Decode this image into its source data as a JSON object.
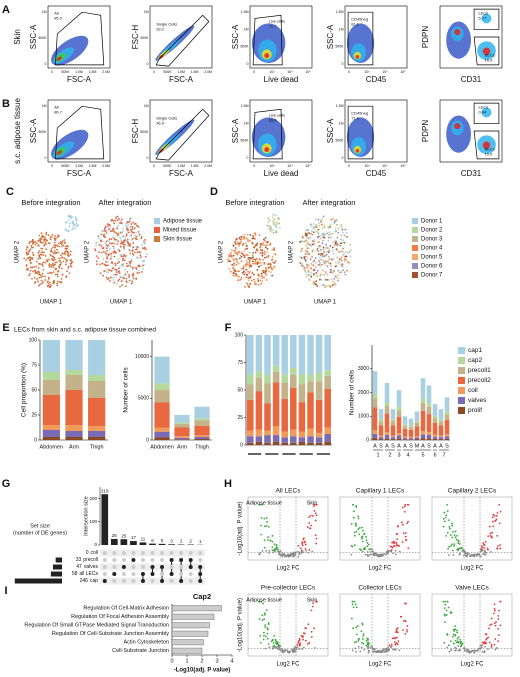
{
  "flow": [
    {
      "label": "A",
      "tissue": "Skin",
      "plots": [
        {
          "x_label": "FSC-A",
          "y_label": "SSC-A",
          "gates": [
            {
              "name": "All",
              "value": "85.0"
            }
          ],
          "xticks": [
            "0",
            "500K",
            "1.0M",
            "1.5M",
            "2.0M"
          ],
          "yticks": [
            "0",
            "500K",
            "1M"
          ]
        },
        {
          "x_label": "FSC-A",
          "y_label": "FSC-H",
          "gates": [
            {
              "name": "Single Cells",
              "value": "93.2"
            }
          ],
          "xticks": [
            "0",
            "500K",
            "1.0M",
            "1.5M",
            "2.0M"
          ],
          "yticks": [
            "0",
            "500K",
            "1M"
          ]
        },
        {
          "x_label": "Live dead",
          "y_label": "SSC-A",
          "gates": [
            {
              "name": "Live cells",
              "value": "71.7"
            }
          ],
          "xticks": [
            "0",
            "10³",
            "10⁴",
            "10⁵"
          ],
          "yticks": [
            "0",
            "500K",
            "1M",
            "1.5M"
          ]
        },
        {
          "x_label": "CD45",
          "y_label": "SSC-A",
          "gates": [
            {
              "name": "CD45neg",
              "value": "81.1"
            }
          ],
          "xticks": [
            "0",
            "10³",
            "10⁴",
            "10⁵"
          ],
          "yticks": [
            "0",
            "500K",
            "1M",
            "1.5M"
          ]
        },
        {
          "x_label": "CD31",
          "y_label": "PDPN",
          "gates": [
            {
              "name": "LECs",
              "value": "5.77"
            },
            {
              "name": "BECs",
              "value": "16.9"
            }
          ],
          "xticks": [],
          "yticks": []
        }
      ]
    },
    {
      "label": "B",
      "tissue": "s.c. adipose tissue",
      "plots": [
        {
          "x_label": "FSC-A",
          "y_label": "SSC-A",
          "gates": [
            {
              "name": "All",
              "value": "86.7"
            }
          ],
          "xticks": [
            "0",
            "500K",
            "1.0M",
            "1.5M",
            "2.0M"
          ],
          "yticks": [
            "0",
            "500K",
            "1M"
          ]
        },
        {
          "x_label": "FSC-A",
          "y_label": "FSC-H",
          "gates": [
            {
              "name": "Single Cells",
              "value": "96.9"
            }
          ],
          "xticks": [
            "0",
            "500K",
            "1.0M",
            "1.5M",
            "2.0M"
          ],
          "yticks": [
            "0",
            "500K",
            "1M"
          ]
        },
        {
          "x_label": "Live dead",
          "y_label": "SSC-A",
          "gates": [
            {
              "name": "Live cells",
              "value": "65.6"
            }
          ],
          "xticks": [
            "0",
            "10³",
            "10⁴",
            "10⁵"
          ],
          "yticks": [
            "0",
            "500K",
            "1M",
            "1.5M"
          ]
        },
        {
          "x_label": "CD45",
          "y_label": "SSC-A",
          "gates": [
            {
              "name": "CD45neg",
              "value": "71.9"
            }
          ],
          "xticks": [
            "0",
            "10³",
            "10⁴",
            "10⁵"
          ],
          "yticks": [
            "0",
            "500K",
            "1M",
            "1.5M"
          ]
        },
        {
          "x_label": "CD31",
          "y_label": "PDPN",
          "gates": [
            {
              "name": "LECs",
              "value": "0.84"
            },
            {
              "name": "BECs",
              "value": "10.5"
            }
          ],
          "xticks": [],
          "yticks": []
        }
      ]
    }
  ],
  "umap": [
    {
      "label": "C",
      "panels": [
        "Before integration",
        "After integration"
      ],
      "x_label": "UMAP 1",
      "y_label": "UMAP 2",
      "legend": [
        {
          "name": "Adipose tissue",
          "color": "#a6cee3"
        },
        {
          "name": "Mixed tissue",
          "color": "#e8603c"
        },
        {
          "name": "Skin tissue",
          "color": "#c9783e"
        }
      ]
    },
    {
      "label": "D",
      "panels": [
        "Before integration",
        "After integration"
      ],
      "x_label": "UMAP 1",
      "y_label": "UMAP 2",
      "legend": [
        {
          "name": "Donor 1",
          "color": "#a6cee3"
        },
        {
          "name": "Donor 2",
          "color": "#b5d99c"
        },
        {
          "name": "Donor 3",
          "color": "#c4b28a"
        },
        {
          "name": "Donor 4",
          "color": "#ef7d45"
        },
        {
          "name": "Donor 5",
          "color": "#f5a86a"
        },
        {
          "name": "Donor 6",
          "color": "#9b8ac4"
        },
        {
          "name": "Donor 7",
          "color": "#a0522d"
        }
      ]
    }
  ],
  "section_e": {
    "label": "E",
    "title": "LECs from skin and s.c. adipose tissue combined"
  },
  "section_f": {
    "label": "F"
  },
  "section_g": {
    "label": "G"
  },
  "section_i": {
    "label": "I"
  },
  "volcano": {
    "label": "H",
    "y_label": "-Log10(adj. P value)",
    "x_label": "Log2 FC",
    "side_labels": [
      "Adipose tissue",
      "Skin"
    ],
    "titles": [
      "All LECs",
      "Capillary 1 LECs",
      "Capillary 2 LECs",
      "Pre-collector LECs",
      "Collector LECs",
      "Valve LECs"
    ]
  },
  "chart_data": [
    {
      "type": "stacked_bar",
      "y_label": "Cell proportion (%)",
      "categories": [
        "Abdomen",
        "Arm",
        "Thigh"
      ],
      "ylim": [
        0,
        100
      ],
      "yticks": [
        0,
        25,
        50,
        75,
        100
      ],
      "series": [
        {
          "color": "#8c4a24",
          "values": [
            3,
            3,
            3
          ]
        },
        {
          "color": "#7b6bb5",
          "values": [
            7,
            6,
            6
          ]
        },
        {
          "color": "#f19a5a",
          "values": [
            5,
            6,
            5
          ]
        },
        {
          "color": "#e8683f",
          "values": [
            30,
            35,
            28
          ]
        },
        {
          "color": "#c4b28a",
          "values": [
            15,
            15,
            17
          ]
        },
        {
          "color": "#b5d99c",
          "values": [
            8,
            5,
            6
          ]
        },
        {
          "color": "#a9cfe3",
          "values": [
            32,
            30,
            35
          ]
        }
      ]
    },
    {
      "type": "stacked_bar",
      "y_label": "Number of cells",
      "categories": [
        "Abdomen",
        "Arm",
        "Thigh"
      ],
      "ylim": [
        0,
        12000
      ],
      "yticks": [
        0,
        5000,
        10000
      ],
      "series": [
        {
          "color": "#8c4a24",
          "values": [
            300,
            90,
            120
          ]
        },
        {
          "color": "#7b6bb5",
          "values": [
            700,
            180,
            240
          ]
        },
        {
          "color": "#f19a5a",
          "values": [
            500,
            180,
            200
          ]
        },
        {
          "color": "#e8683f",
          "values": [
            3000,
            1050,
            1120
          ]
        },
        {
          "color": "#c4b28a",
          "values": [
            1500,
            450,
            680
          ]
        },
        {
          "color": "#b5d99c",
          "values": [
            800,
            150,
            240
          ]
        },
        {
          "color": "#a9cfe3",
          "values": [
            3200,
            900,
            1400
          ]
        }
      ]
    },
    {
      "type": "stacked_bar",
      "categories": [
        null,
        null,
        null,
        null,
        null,
        null,
        null,
        null,
        null,
        null
      ],
      "ylim": [
        0,
        100
      ],
      "yticks": [
        0,
        25,
        50,
        75,
        100
      ],
      "series": [
        {
          "color": "#8c4a24",
          "values": [
            2,
            3,
            2,
            3,
            2,
            2,
            3,
            2,
            2,
            3
          ]
        },
        {
          "color": "#7b6bb5",
          "values": [
            6,
            5,
            7,
            6,
            5,
            6,
            4,
            6,
            5,
            7
          ]
        },
        {
          "color": "#f19a5a",
          "values": [
            5,
            6,
            4,
            8,
            5,
            6,
            5,
            7,
            4,
            6
          ]
        },
        {
          "color": "#e8683f",
          "values": [
            28,
            35,
            25,
            40,
            30,
            38,
            27,
            33,
            30,
            35
          ]
        },
        {
          "color": "#c4b28a",
          "values": [
            14,
            12,
            18,
            10,
            15,
            12,
            16,
            10,
            17,
            12
          ]
        },
        {
          "color": "#b5d99c",
          "values": [
            9,
            6,
            8,
            5,
            7,
            6,
            9,
            6,
            8,
            5
          ]
        },
        {
          "color": "#a9cfe3",
          "values": [
            36,
            33,
            36,
            28,
            36,
            30,
            36,
            36,
            34,
            32
          ]
        }
      ]
    },
    {
      "type": "stacked_bar",
      "y_label": "Number of cells",
      "legend": "right",
      "ylim": [
        0,
        4000
      ],
      "yticks": [
        0,
        1000,
        2000,
        3000
      ],
      "donors": [
        {
          "label": "1",
          "samples": [
            "A",
            "S"
          ]
        },
        {
          "label": "2",
          "samples": [
            "A",
            "S"
          ]
        },
        {
          "label": "3",
          "samples": [
            "A"
          ]
        },
        {
          "label": "4",
          "samples": [
            "A",
            "S"
          ]
        },
        {
          "label": "5",
          "samples": [
            "M",
            "A",
            "S"
          ]
        },
        {
          "label": "6",
          "samples": [
            "A"
          ]
        },
        {
          "label": "7",
          "samples": [
            "A",
            "S"
          ]
        }
      ],
      "series": [
        {
          "name": "prolif",
          "color": "#8c4a24",
          "values": [
            90,
            40,
            70,
            40,
            60,
            30,
            30,
            40,
            80,
            70,
            50,
            40,
            50
          ]
        },
        {
          "name": "valves",
          "color": "#7b6bb5",
          "values": [
            170,
            80,
            140,
            80,
            130,
            60,
            50,
            70,
            160,
            140,
            90,
            80,
            110
          ]
        },
        {
          "name": "coll",
          "color": "#f19a5a",
          "values": [
            150,
            60,
            120,
            60,
            100,
            50,
            50,
            60,
            130,
            120,
            80,
            60,
            90
          ]
        },
        {
          "name": "precoll2",
          "color": "#e8683f",
          "values": [
            960,
            430,
            790,
            430,
            690,
            330,
            300,
            400,
            860,
            760,
            500,
            430,
            590
          ]
        },
        {
          "name": "precoll1",
          "color": "#c4b28a",
          "values": [
            380,
            170,
            310,
            170,
            270,
            130,
            120,
            160,
            340,
            300,
            200,
            170,
            240
          ]
        },
        {
          "name": "cap2",
          "color": "#b5d99c",
          "values": [
            200,
            90,
            170,
            90,
            150,
            70,
            60,
            80,
            180,
            160,
            100,
            90,
            130
          ]
        },
        {
          "name": "cap1",
          "color": "#a9cfe3",
          "values": [
            950,
            430,
            800,
            430,
            700,
            330,
            290,
            390,
            850,
            750,
            490,
            430,
            590
          ]
        }
      ]
    },
    {
      "type": "upset",
      "y_label": "Intersection size",
      "set_label": [
        "Set size",
        "(number of DE genes)"
      ],
      "values": [
        219,
        26,
        25,
        17,
        11,
        6,
        5,
        3,
        2,
        2,
        1
      ],
      "ylim": [
        0,
        250
      ],
      "yticks": [
        0,
        100,
        200
      ],
      "memberships": [
        [
          "cap"
        ],
        [
          "all LECs"
        ],
        [
          "valves"
        ],
        [
          "precoll"
        ],
        [
          "cap",
          "all LECs"
        ],
        [
          "valves",
          "all LECs"
        ],
        [
          "cap",
          "valves"
        ],
        [
          "precoll",
          "all LECs"
        ],
        [
          "cap",
          "precoll"
        ],
        [
          "precoll",
          "valves"
        ],
        [
          "cap",
          "valves",
          "all LECs"
        ]
      ],
      "sets": [
        "coll",
        "precoll",
        "valves",
        "all LECs",
        "cap"
      ],
      "set_sizes": [
        0,
        33,
        47,
        58,
        246
      ],
      "set_xlim": [
        0,
        250
      ],
      "color": "#222222"
    },
    {
      "type": "hbar",
      "title": "Cap2",
      "x_label": "-Log10(adj. P value)",
      "color": "#cccccc",
      "categories": [
        "Regulation Of Cell-Matrix Adhesion",
        "Regulation Of Focal Adhesion Assembly",
        "Regulation Of Small GTPase Mediated Signal Transduction",
        "Regulation Of Cell-Substrate Junction Assembly",
        "Actin Cytoskeleton",
        "Cell-Substrate Junction"
      ],
      "values": [
        3.3,
        2.8,
        2.5,
        2.4,
        2.1,
        2.0
      ],
      "xlim": [
        0,
        4
      ],
      "xticks": [
        0,
        1,
        2,
        3,
        4
      ]
    }
  ]
}
